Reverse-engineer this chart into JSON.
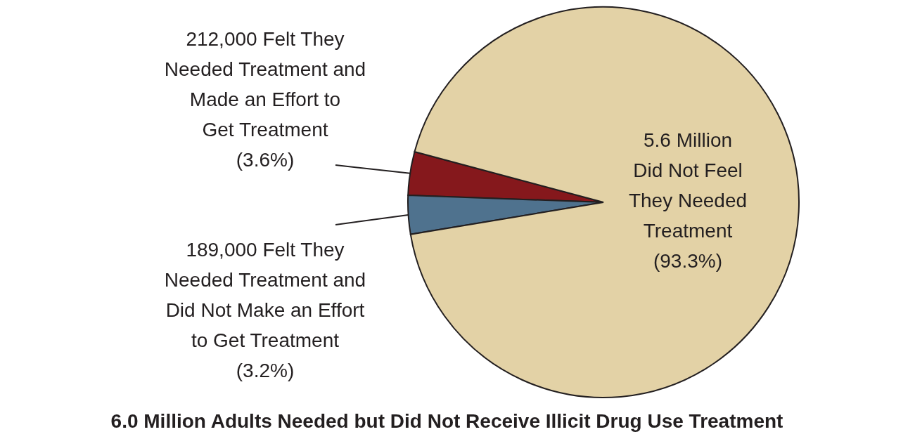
{
  "chart_data": {
    "type": "pie",
    "title": "6.0 Million Adults Needed but Did Not Receive Illicit Drug Use Treatment",
    "categories": [
      "212,000 Felt They Needed Treatment and Made an Effort to Get Treatment",
      "189,000 Felt They Needed Treatment and Did Not Make an Effort to Get Treatment",
      "5.6 Million Did Not Feel They Needed Treatment"
    ],
    "values": [
      3.6,
      3.2,
      93.3
    ],
    "value_labels": [
      "(3.6%)",
      "(3.2%)",
      "(93.3%)"
    ],
    "colors": [
      "#85181c",
      "#4f728e",
      "#e3d2a6"
    ],
    "legend": false
  }
}
